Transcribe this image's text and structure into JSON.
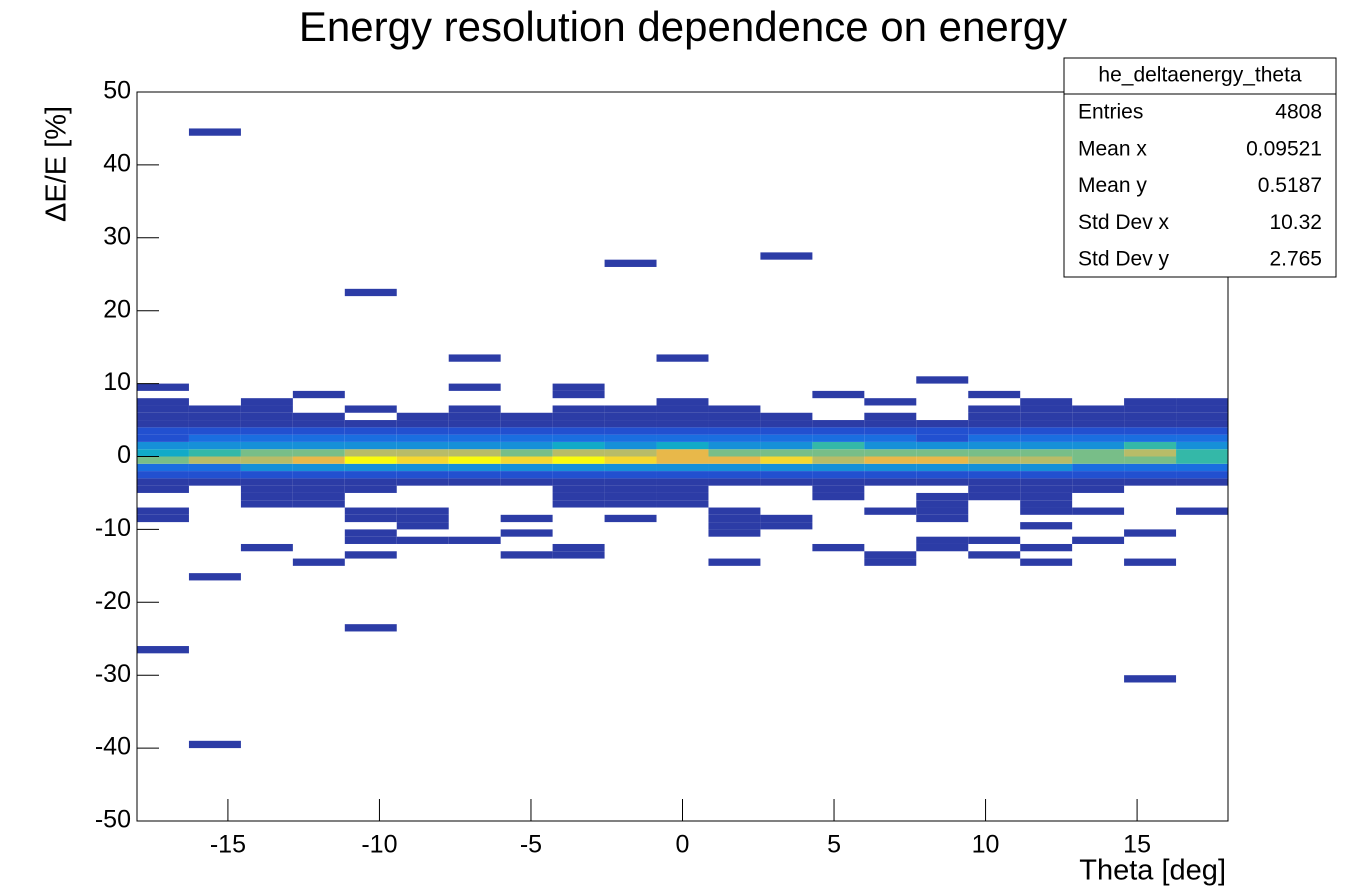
{
  "chart_data": {
    "type": "heatmap",
    "title": "Energy resolution dependence on energy",
    "x_label": "Theta [deg]",
    "y_label": "ΔE/E [%]",
    "xlim": [
      -18,
      18
    ],
    "ylim": [
      -50,
      50
    ],
    "xticks": [
      -15,
      -10,
      -5,
      0,
      5,
      10,
      15
    ],
    "yticks": [
      50,
      40,
      30,
      20,
      10,
      0,
      -10,
      -20,
      -30,
      -40,
      -50
    ],
    "xbins": [
      -18,
      -16.286,
      -14.571,
      -12.857,
      -11.143,
      -9.429,
      -7.714,
      -6,
      -4.286,
      -2.571,
      -0.857,
      0.857,
      2.571,
      4.286,
      6,
      7.714,
      9.429,
      11.143,
      12.857,
      14.571,
      16.286,
      18
    ],
    "ybin": 1,
    "zlim": [
      1,
      50
    ],
    "palette": [
      "#2c3ca6",
      "#2250d0",
      "#1a6ee0",
      "#1690d8",
      "#12aac8",
      "#34b8a8",
      "#78be88",
      "#b8bc68",
      "#e8b84a",
      "#f5d830",
      "#f9fb0e"
    ],
    "columns": [
      [
        [
          -5,
          1
        ],
        [
          -4,
          2
        ],
        [
          -3,
          5
        ],
        [
          -2,
          10
        ],
        [
          -1,
          30
        ],
        [
          0,
          22
        ],
        [
          1,
          14
        ],
        [
          2,
          8
        ],
        [
          3,
          5
        ],
        [
          4,
          3
        ],
        [
          5,
          2
        ],
        [
          6,
          1
        ],
        [
          7,
          1
        ],
        [
          9,
          1
        ],
        [
          -9,
          1
        ],
        [
          -8,
          1
        ],
        [
          -27,
          1
        ]
      ],
      [
        [
          -4,
          3
        ],
        [
          -3,
          6
        ],
        [
          -2,
          12
        ],
        [
          -1,
          34
        ],
        [
          0,
          26
        ],
        [
          1,
          16
        ],
        [
          2,
          9
        ],
        [
          3,
          5
        ],
        [
          4,
          3
        ],
        [
          5,
          2
        ],
        [
          6,
          1
        ],
        [
          44,
          1
        ],
        [
          -17,
          1
        ],
        [
          -40,
          1
        ]
      ],
      [
        [
          -7,
          1
        ],
        [
          -6,
          1
        ],
        [
          -5,
          1
        ],
        [
          -4,
          3
        ],
        [
          -3,
          6
        ],
        [
          -2,
          14
        ],
        [
          -1,
          36
        ],
        [
          0,
          28
        ],
        [
          1,
          16
        ],
        [
          2,
          9
        ],
        [
          3,
          5
        ],
        [
          4,
          3
        ],
        [
          5,
          2
        ],
        [
          6,
          1
        ],
        [
          7,
          1
        ],
        [
          -13,
          1
        ]
      ],
      [
        [
          -7,
          1
        ],
        [
          -6,
          1
        ],
        [
          -5,
          2
        ],
        [
          -4,
          3
        ],
        [
          -3,
          7
        ],
        [
          -2,
          14
        ],
        [
          -1,
          38
        ],
        [
          0,
          30
        ],
        [
          1,
          17
        ],
        [
          2,
          9
        ],
        [
          3,
          5
        ],
        [
          4,
          3
        ],
        [
          5,
          1
        ],
        [
          8,
          1
        ],
        [
          -15,
          1
        ]
      ],
      [
        [
          -5,
          1
        ],
        [
          -4,
          3
        ],
        [
          -3,
          7
        ],
        [
          -2,
          15
        ],
        [
          -1,
          50
        ],
        [
          0,
          34
        ],
        [
          1,
          18
        ],
        [
          2,
          10
        ],
        [
          3,
          5
        ],
        [
          4,
          3
        ],
        [
          6,
          1
        ],
        [
          22,
          1
        ],
        [
          -9,
          1
        ],
        [
          -8,
          1
        ],
        [
          -12,
          1
        ],
        [
          -11,
          1
        ],
        [
          -14,
          1
        ],
        [
          -24,
          1
        ]
      ],
      [
        [
          -4,
          3
        ],
        [
          -3,
          7
        ],
        [
          -2,
          15
        ],
        [
          -1,
          46
        ],
        [
          0,
          33
        ],
        [
          1,
          18
        ],
        [
          2,
          10
        ],
        [
          3,
          5
        ],
        [
          4,
          3
        ],
        [
          5,
          1
        ],
        [
          -10,
          1
        ],
        [
          -9,
          1
        ],
        [
          -8,
          1
        ],
        [
          -12,
          1
        ]
      ],
      [
        [
          -4,
          3
        ],
        [
          -3,
          7
        ],
        [
          -2,
          16
        ],
        [
          -1,
          48
        ],
        [
          0,
          35
        ],
        [
          1,
          18
        ],
        [
          2,
          10
        ],
        [
          3,
          5
        ],
        [
          4,
          3
        ],
        [
          5,
          2
        ],
        [
          6,
          1
        ],
        [
          9,
          1
        ],
        [
          13,
          1
        ],
        [
          -12,
          1
        ]
      ],
      [
        [
          -4,
          3
        ],
        [
          -3,
          7
        ],
        [
          -2,
          15
        ],
        [
          -1,
          44
        ],
        [
          0,
          32
        ],
        [
          1,
          17
        ],
        [
          2,
          9
        ],
        [
          3,
          5
        ],
        [
          4,
          3
        ],
        [
          5,
          1
        ],
        [
          -9,
          1
        ],
        [
          -11,
          1
        ],
        [
          -14,
          1
        ]
      ],
      [
        [
          -7,
          1
        ],
        [
          -6,
          1
        ],
        [
          -5,
          2
        ],
        [
          -4,
          3
        ],
        [
          -3,
          7
        ],
        [
          -2,
          16
        ],
        [
          -1,
          50
        ],
        [
          0,
          36
        ],
        [
          1,
          19
        ],
        [
          2,
          10
        ],
        [
          3,
          6
        ],
        [
          4,
          3
        ],
        [
          5,
          2
        ],
        [
          6,
          1
        ],
        [
          8,
          1
        ],
        [
          9,
          1
        ],
        [
          -14,
          1
        ],
        [
          -13,
          1
        ]
      ],
      [
        [
          -7,
          1
        ],
        [
          -6,
          1
        ],
        [
          -5,
          2
        ],
        [
          -4,
          3
        ],
        [
          -3,
          7
        ],
        [
          -2,
          15
        ],
        [
          -1,
          46
        ],
        [
          0,
          34
        ],
        [
          1,
          18
        ],
        [
          2,
          10
        ],
        [
          3,
          5
        ],
        [
          4,
          3
        ],
        [
          5,
          2
        ],
        [
          6,
          1
        ],
        [
          26,
          1
        ],
        [
          -9,
          1
        ]
      ],
      [
        [
          -7,
          1
        ],
        [
          -6,
          1
        ],
        [
          -5,
          2
        ],
        [
          -4,
          3
        ],
        [
          -3,
          8
        ],
        [
          -2,
          18
        ],
        [
          -1,
          40
        ],
        [
          0,
          38
        ],
        [
          1,
          20
        ],
        [
          2,
          10
        ],
        [
          3,
          5
        ],
        [
          4,
          3
        ],
        [
          5,
          2
        ],
        [
          6,
          1
        ],
        [
          7,
          1
        ],
        [
          13,
          1
        ]
      ],
      [
        [
          -4,
          2
        ],
        [
          -3,
          6
        ],
        [
          -2,
          14
        ],
        [
          -1,
          40
        ],
        [
          0,
          30
        ],
        [
          1,
          17
        ],
        [
          2,
          9
        ],
        [
          3,
          5
        ],
        [
          4,
          3
        ],
        [
          5,
          2
        ],
        [
          6,
          1
        ],
        [
          -11,
          1
        ],
        [
          -10,
          1
        ],
        [
          -9,
          1
        ],
        [
          -8,
          1
        ],
        [
          -15,
          1
        ]
      ],
      [
        [
          -4,
          2
        ],
        [
          -3,
          6
        ],
        [
          -2,
          14
        ],
        [
          -1,
          44
        ],
        [
          0,
          32
        ],
        [
          1,
          17
        ],
        [
          2,
          9
        ],
        [
          3,
          5
        ],
        [
          4,
          3
        ],
        [
          5,
          1
        ],
        [
          27,
          1
        ],
        [
          -10,
          1
        ],
        [
          -9,
          1
        ]
      ],
      [
        [
          -6,
          1
        ],
        [
          -5,
          1
        ],
        [
          -4,
          3
        ],
        [
          -3,
          7
        ],
        [
          -2,
          16
        ],
        [
          -1,
          34
        ],
        [
          0,
          30
        ],
        [
          1,
          24
        ],
        [
          2,
          10
        ],
        [
          3,
          5
        ],
        [
          4,
          2
        ],
        [
          8,
          1
        ],
        [
          -13,
          1
        ]
      ],
      [
        [
          -4,
          3
        ],
        [
          -3,
          7
        ],
        [
          -2,
          15
        ],
        [
          -1,
          38
        ],
        [
          0,
          30
        ],
        [
          1,
          17
        ],
        [
          2,
          9
        ],
        [
          3,
          4
        ],
        [
          4,
          2
        ],
        [
          5,
          1
        ],
        [
          7,
          1
        ],
        [
          -8,
          1
        ],
        [
          -15,
          1
        ],
        [
          -14,
          1
        ]
      ],
      [
        [
          -9,
          1
        ],
        [
          -8,
          1
        ],
        [
          -7,
          1
        ],
        [
          -6,
          1
        ],
        [
          -4,
          3
        ],
        [
          -3,
          7
        ],
        [
          -2,
          14
        ],
        [
          -1,
          40
        ],
        [
          0,
          30
        ],
        [
          1,
          16
        ],
        [
          2,
          8
        ],
        [
          3,
          4
        ],
        [
          4,
          2
        ],
        [
          10,
          1
        ],
        [
          -13,
          1
        ],
        [
          -12,
          1
        ]
      ],
      [
        [
          -6,
          1
        ],
        [
          -5,
          1
        ],
        [
          -4,
          3
        ],
        [
          -3,
          7
        ],
        [
          -2,
          14
        ],
        [
          -1,
          34
        ],
        [
          0,
          30
        ],
        [
          1,
          16
        ],
        [
          2,
          9
        ],
        [
          3,
          5
        ],
        [
          4,
          3
        ],
        [
          5,
          1
        ],
        [
          6,
          1
        ],
        [
          8,
          1
        ],
        [
          -12,
          1
        ],
        [
          -14,
          1
        ]
      ],
      [
        [
          -8,
          1
        ],
        [
          -7,
          1
        ],
        [
          -6,
          1
        ],
        [
          -5,
          2
        ],
        [
          -4,
          3
        ],
        [
          -3,
          7
        ],
        [
          -2,
          14
        ],
        [
          -1,
          34
        ],
        [
          0,
          28
        ],
        [
          1,
          16
        ],
        [
          2,
          9
        ],
        [
          3,
          5
        ],
        [
          4,
          3
        ],
        [
          5,
          2
        ],
        [
          6,
          1
        ],
        [
          7,
          1
        ],
        [
          -10,
          1
        ],
        [
          -13,
          1
        ],
        [
          -15,
          1
        ]
      ],
      [
        [
          -5,
          1
        ],
        [
          -4,
          3
        ],
        [
          -3,
          6
        ],
        [
          -2,
          13
        ],
        [
          -1,
          32
        ],
        [
          0,
          28
        ],
        [
          1,
          16
        ],
        [
          2,
          9
        ],
        [
          3,
          5
        ],
        [
          4,
          3
        ],
        [
          5,
          2
        ],
        [
          6,
          1
        ],
        [
          -8,
          1
        ],
        [
          -12,
          1
        ]
      ],
      [
        [
          -4,
          3
        ],
        [
          -3,
          6
        ],
        [
          -2,
          12
        ],
        [
          -1,
          30
        ],
        [
          0,
          34
        ],
        [
          1,
          26
        ],
        [
          2,
          10
        ],
        [
          3,
          5
        ],
        [
          4,
          3
        ],
        [
          5,
          2
        ],
        [
          6,
          1
        ],
        [
          7,
          1
        ],
        [
          -11,
          1
        ],
        [
          -15,
          1
        ],
        [
          -31,
          1
        ]
      ],
      [
        [
          -4,
          3
        ],
        [
          -3,
          6
        ],
        [
          -2,
          12
        ],
        [
          -1,
          26
        ],
        [
          0,
          24
        ],
        [
          1,
          16
        ],
        [
          2,
          9
        ],
        [
          3,
          5
        ],
        [
          4,
          3
        ],
        [
          5,
          2
        ],
        [
          6,
          1
        ],
        [
          7,
          1
        ],
        [
          -8,
          1
        ]
      ]
    ],
    "stats": {
      "name": "he_deltaenergy_theta",
      "rows": [
        [
          "Entries",
          4808
        ],
        [
          "Mean x",
          0.09521
        ],
        [
          "Mean y",
          0.5187
        ],
        [
          "Std Dev x",
          10.32
        ],
        [
          "Std Dev y",
          2.765
        ]
      ]
    }
  }
}
